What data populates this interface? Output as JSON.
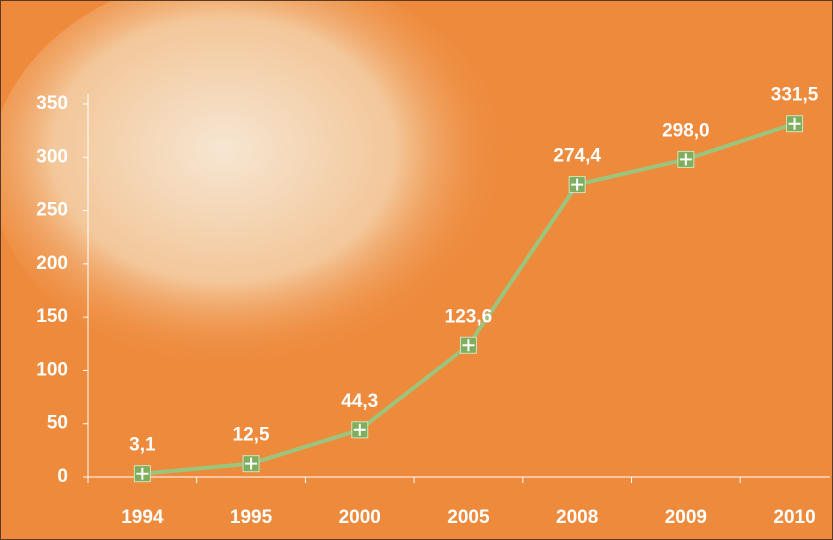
{
  "chart_data": {
    "type": "line",
    "categories": [
      "1994",
      "1995",
      "2000",
      "2005",
      "2008",
      "2009",
      "2010"
    ],
    "series": [
      {
        "color": "#9dc47d",
        "values": [
          3.1,
          12.5,
          44.3,
          123.6,
          274.4,
          298.0,
          331.5
        ],
        "value_labels": [
          "3,1",
          "12,5",
          "44,3",
          "123,6",
          "274,4",
          "298,0",
          "331,5"
        ]
      }
    ],
    "ylim": [
      0,
      350
    ],
    "yticks": [
      0,
      50,
      100,
      150,
      200,
      250,
      300,
      350
    ]
  }
}
